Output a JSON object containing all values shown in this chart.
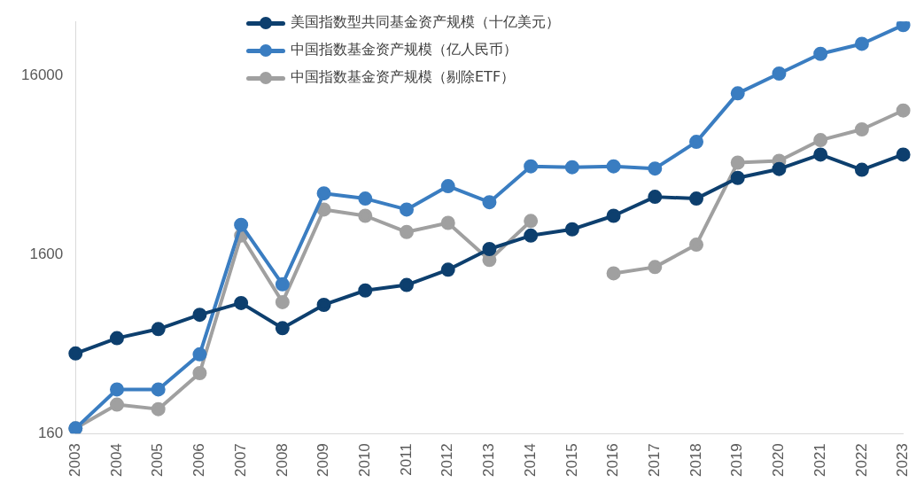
{
  "chart_data": {
    "type": "line",
    "categories": [
      "2003",
      "2004",
      "2005",
      "2006",
      "2007",
      "2008",
      "2009",
      "2010",
      "2011",
      "2012",
      "2013",
      "2014",
      "2015",
      "2016",
      "2017",
      "2018",
      "2019",
      "2020",
      "2021",
      "2022",
      "2023"
    ],
    "series": [
      {
        "name": "美国指数型共同基金资产规模（十亿美元）",
        "color": "#0d3f6e",
        "values": [
          448,
          545,
          613,
          737,
          857,
          620,
          837,
          1007,
          1080,
          1315,
          1715,
          2040,
          2210,
          2630,
          3355,
          3280,
          4280,
          4800,
          5780,
          4750,
          5780
        ]
      },
      {
        "name": "中国指数基金资产规模（亿人民币）",
        "color": "#3a7dc1",
        "values": [
          171,
          282,
          282,
          443,
          2343,
          1090,
          3510,
          3280,
          2850,
          3850,
          3130,
          4970,
          4910,
          4970,
          4830,
          6800,
          12690,
          16370,
          21100,
          24000,
          30560
        ]
      },
      {
        "name": "中国指数基金资产规模（剔除ETF）",
        "color": "#a0a0a0",
        "values": [
          171,
          232,
          219,
          348,
          2040,
          867,
          2850,
          2630,
          2135,
          2400,
          1490,
          2460,
          null,
          1255,
          1360,
          1815,
          5210,
          5330,
          6960,
          7990,
          10190
        ]
      }
    ],
    "log": "y",
    "ylim": [
      160,
      32000
    ],
    "yticks": [
      160,
      1600,
      16000
    ],
    "grid": false,
    "legend": "top",
    "marker": "circle",
    "line_style": "solid"
  }
}
